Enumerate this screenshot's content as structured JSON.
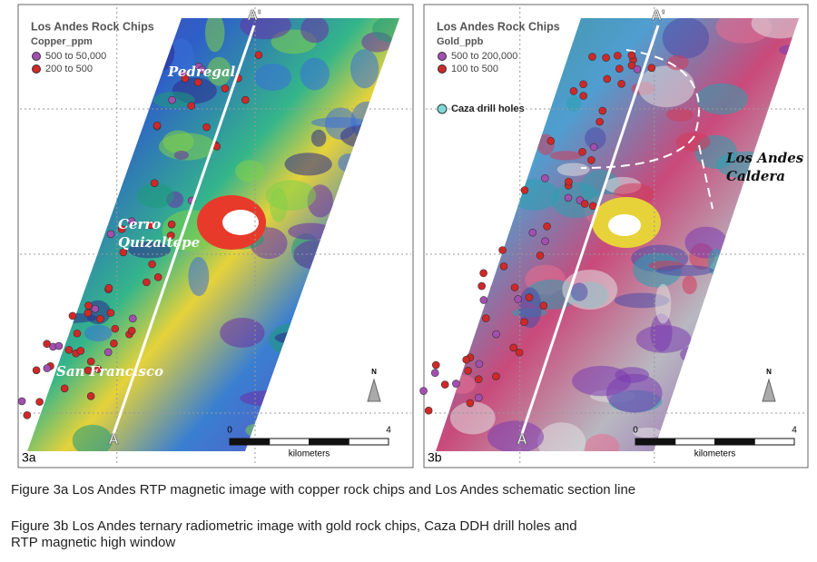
{
  "panels": [
    {
      "label": "3a",
      "legend": {
        "title": "Los Andes Rock Chips",
        "field": "Copper_ppm",
        "entries": [
          "500  to  50,000",
          "200  to       500"
        ]
      },
      "places": [
        [
          "Pedregal"
        ],
        [
          "Cerro",
          "Quizaltepe"
        ],
        [
          "San Francisco"
        ]
      ],
      "section": {
        "start": "A",
        "end": "A'"
      },
      "scale": {
        "min": 0,
        "max": 4,
        "unit": "kilometers"
      },
      "north": "N"
    },
    {
      "label": "3b",
      "legend": {
        "title": "Los Andes Rock Chips",
        "field": "Gold_ppb",
        "entries": [
          "500  to  200,000",
          "100  to         500"
        ],
        "extra": "Caza drill holes"
      },
      "places": [
        [
          "Los Andes",
          "Caldera"
        ]
      ],
      "section": {
        "start": "A",
        "end": "A'"
      },
      "scale": {
        "min": 0,
        "max": 4,
        "unit": "kilometers"
      },
      "north": "N"
    }
  ],
  "captions": [
    "Figure 3a Los Andes RTP magnetic image with copper rock chips and Los Andes schematic section line",
    "Figure 3b Los Andes ternary radiometric image with gold rock chips, Caza DDH drill holes and RTP magnetic high window"
  ]
}
